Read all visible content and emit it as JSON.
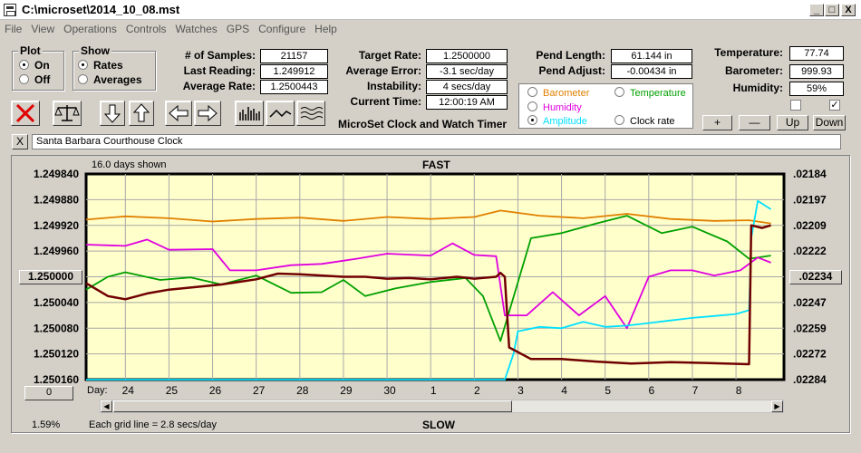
{
  "window": {
    "title": "C:\\microset\\2014_10_08.mst",
    "min": "_",
    "max": "□",
    "close": "X"
  },
  "menu": [
    "File",
    "View",
    "Operations",
    "Controls",
    "Watches",
    "GPS",
    "Configure",
    "Help"
  ],
  "plot_group": {
    "legend": "Plot",
    "on": "On",
    "off": "Off",
    "selected": "On"
  },
  "show_group": {
    "legend": "Show",
    "rates": "Rates",
    "averages": "Averages",
    "selected": "Rates"
  },
  "stats": {
    "samples_label": "# of Samples:",
    "samples": "21157",
    "last_reading_label": "Last Reading:",
    "last_reading": "1.249912",
    "average_rate_label": "Average Rate:",
    "average_rate": "1.2500443",
    "target_rate_label": "Target Rate:",
    "target_rate": "1.2500000",
    "average_error_label": "Average Error:",
    "average_error": "-3.1 sec/day",
    "instability_label": "Instability:",
    "instability": "4 secs/day",
    "current_time_label": "Current Time:",
    "current_time": "12:00:19 AM",
    "pend_length_label": "Pend Length:",
    "pend_length": "61.144 in",
    "pend_adjust_label": "Pend Adjust:",
    "pend_adjust": "-0.00434 in",
    "temperature_label": "Temperature:",
    "temperature": "77.74",
    "barometer_label": "Barometer:",
    "barometer": "999.93",
    "humidity_label": "Humidity:",
    "humidity": "59%"
  },
  "chart_title": "MicroSet Clock and Watch Timer",
  "series_select": {
    "barometer": "Barometer",
    "temperature": "Temperature",
    "humidity": "Humidity",
    "amplitude": "Amplitude",
    "clock_rate": "Clock rate",
    "selected": "Amplitude"
  },
  "scale_buttons": {
    "plus": "+",
    "minus": "—",
    "up": "Up",
    "down": "Down"
  },
  "clock_name": "Santa Barbara Courthouse Clock",
  "name_clear": "X",
  "colors": {
    "barometer": "#e08000",
    "temperature": "#00a000",
    "humidity": "#e000e0",
    "amplitude": "#00e0ff",
    "rate": "#700000",
    "plot_bg": "#ffffcc"
  },
  "chart_data": {
    "type": "line",
    "days_shown": "16.0 days shown",
    "top_label": "FAST",
    "bottom_label": "SLOW",
    "grid_note": "Each grid line = 2.8 secs/day",
    "percent": "1.59%",
    "day_label": "Day:",
    "x_ticks": [
      "24",
      "25",
      "26",
      "27",
      "28",
      "29",
      "30",
      "1",
      "2",
      "3",
      "4",
      "5",
      "6",
      "7",
      "8"
    ],
    "x_range": [
      23.1,
      39.1
    ],
    "x_tick_values": [
      24,
      25,
      26,
      27,
      28,
      29,
      30,
      31,
      32,
      33,
      34,
      35,
      36,
      37,
      38
    ],
    "y_left_ticks": [
      "1.249840",
      "1.249880",
      "1.249920",
      "1.249960",
      "1.250000",
      "1.250040",
      "1.250080",
      "1.250120",
      "1.250160"
    ],
    "y_right_ticks": [
      ".02184",
      ".02197",
      ".02209",
      ".02222",
      ".02234",
      ".02247",
      ".02259",
      ".02272",
      ".02284"
    ],
    "y_left_range": [
      1.24984,
      1.25016
    ],
    "center_left": "1.250000",
    "center_right": ".02234",
    "scroll_value": "0",
    "series": [
      {
        "name": "Barometer",
        "values": [
          [
            23.1,
            1.249911
          ],
          [
            24,
            1.249906
          ],
          [
            25,
            1.249909
          ],
          [
            26,
            1.249914
          ],
          [
            27,
            1.24991
          ],
          [
            28,
            1.249908
          ],
          [
            29,
            1.249913
          ],
          [
            30,
            1.249907
          ],
          [
            31,
            1.24991
          ],
          [
            32,
            1.249907
          ],
          [
            32.6,
            1.249897
          ],
          [
            33.5,
            1.249905
          ],
          [
            34.5,
            1.249909
          ],
          [
            35.5,
            1.249902
          ],
          [
            36.5,
            1.24991
          ],
          [
            37.5,
            1.249913
          ],
          [
            38.3,
            1.249912
          ],
          [
            38.8,
            1.249917
          ]
        ]
      },
      {
        "name": "Temperature",
        "values": [
          [
            23.1,
            1.25002
          ],
          [
            23.6,
            1.25
          ],
          [
            24,
            1.249993
          ],
          [
            24.8,
            1.250005
          ],
          [
            25.5,
            1.250001
          ],
          [
            26.2,
            1.250012
          ],
          [
            27,
            1.249998
          ],
          [
            27.8,
            1.250025
          ],
          [
            28.5,
            1.250024
          ],
          [
            29,
            1.250005
          ],
          [
            29.5,
            1.25003
          ],
          [
            30.2,
            1.250018
          ],
          [
            31,
            1.250008
          ],
          [
            31.8,
            1.250002
          ],
          [
            32.2,
            1.25003
          ],
          [
            32.6,
            1.2501
          ],
          [
            33.3,
            1.24994
          ],
          [
            34,
            1.249932
          ],
          [
            34.8,
            1.249917
          ],
          [
            35.5,
            1.249905
          ],
          [
            36.3,
            1.249932
          ],
          [
            37,
            1.249922
          ],
          [
            37.8,
            1.249945
          ],
          [
            38.3,
            1.249972
          ],
          [
            38.8,
            1.249967
          ]
        ]
      },
      {
        "name": "Humidity",
        "values": [
          [
            23.1,
            1.24995
          ],
          [
            24,
            1.249952
          ],
          [
            24.5,
            1.249942
          ],
          [
            25,
            1.249958
          ],
          [
            26,
            1.249957
          ],
          [
            26.4,
            1.24999
          ],
          [
            27,
            1.24999
          ],
          [
            27.8,
            1.249982
          ],
          [
            28.5,
            1.24998
          ],
          [
            29.3,
            1.249972
          ],
          [
            30,
            1.249964
          ],
          [
            31,
            1.249967
          ],
          [
            31.5,
            1.249948
          ],
          [
            32,
            1.249966
          ],
          [
            32.5,
            1.249968
          ],
          [
            32.7,
            1.25006
          ],
          [
            33.2,
            1.25006
          ],
          [
            33.8,
            1.250024
          ],
          [
            34.4,
            1.25006
          ],
          [
            35,
            1.25003
          ],
          [
            35.5,
            1.25008
          ],
          [
            36,
            1.25
          ],
          [
            36.5,
            1.24999
          ],
          [
            37,
            1.24999
          ],
          [
            37.5,
            1.249998
          ],
          [
            38.1,
            1.24999
          ],
          [
            38.5,
            1.24997
          ],
          [
            38.8,
            1.249978
          ]
        ]
      },
      {
        "name": "Amplitude",
        "values": [
          [
            23.1,
            1.25016
          ],
          [
            32.7,
            1.25016
          ],
          [
            32.9,
            1.25012
          ],
          [
            33,
            1.250085
          ],
          [
            33.5,
            1.250078
          ],
          [
            34,
            1.25008
          ],
          [
            34.5,
            1.25007
          ],
          [
            35,
            1.250078
          ],
          [
            35.5,
            1.250076
          ],
          [
            36,
            1.250072
          ],
          [
            36.5,
            1.250068
          ],
          [
            37,
            1.250064
          ],
          [
            37.5,
            1.250061
          ],
          [
            38,
            1.250058
          ],
          [
            38.3,
            1.250052
          ],
          [
            38.35,
            1.24994
          ],
          [
            38.5,
            1.249882
          ],
          [
            38.8,
            1.249895
          ]
        ]
      },
      {
        "name": "Clock rate",
        "values": [
          [
            23.1,
            1.25001
          ],
          [
            23.6,
            1.25003
          ],
          [
            24,
            1.250035
          ],
          [
            24.5,
            1.250026
          ],
          [
            25,
            1.25002
          ],
          [
            25.6,
            1.250016
          ],
          [
            26.2,
            1.250012
          ],
          [
            27,
            1.250004
          ],
          [
            27.5,
            1.249995
          ],
          [
            28,
            1.249996
          ],
          [
            28.5,
            1.249998
          ],
          [
            29,
            1.25
          ],
          [
            29.5,
            1.25
          ],
          [
            30,
            1.250003
          ],
          [
            30.5,
            1.250002
          ],
          [
            31,
            1.250004
          ],
          [
            31.6,
            1.25
          ],
          [
            32,
            1.250003
          ],
          [
            32.5,
            1.25
          ],
          [
            32.6,
            1.249994
          ],
          [
            32.7,
            1.25
          ],
          [
            32.8,
            1.25011
          ],
          [
            33.3,
            1.250128
          ],
          [
            34,
            1.250128
          ],
          [
            34.8,
            1.250132
          ],
          [
            35.6,
            1.250135
          ],
          [
            36.5,
            1.250133
          ],
          [
            37.3,
            1.250134
          ],
          [
            38.3,
            1.250136
          ],
          [
            38.35,
            1.24992
          ],
          [
            38.6,
            1.249924
          ],
          [
            38.8,
            1.24992
          ]
        ]
      }
    ]
  }
}
